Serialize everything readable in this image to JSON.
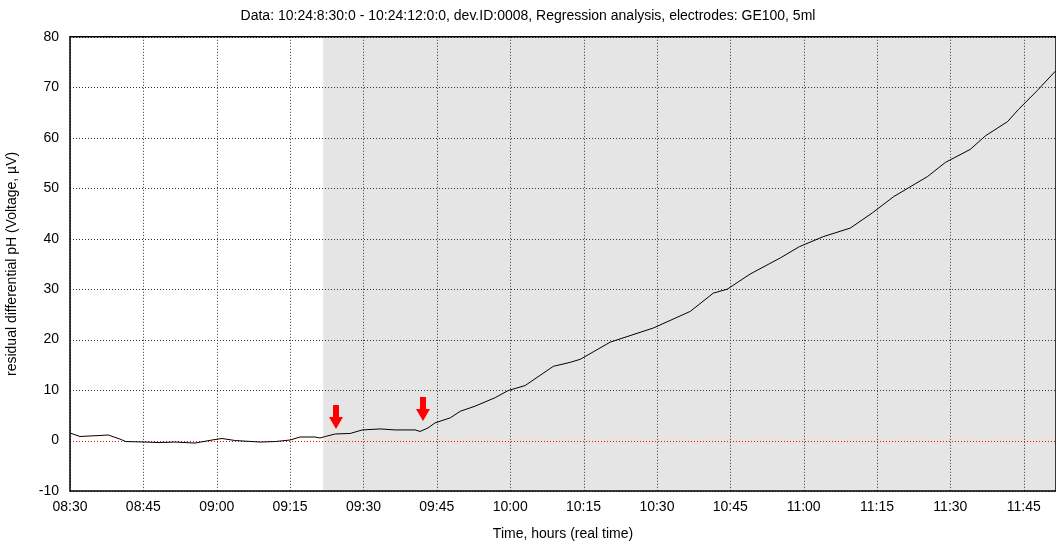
{
  "chart_data": {
    "type": "line",
    "title": "Data: 10:24:8:30:0 - 10:24:12:0:0, dev.ID:0008, Regression analysis, electrodes: GE100, 5ml",
    "xlabel": "Time, hours (real time)",
    "ylabel": "residual differential pH (Voltage, µV)",
    "x": [
      8.5,
      8.534,
      8.602,
      8.63,
      8.67,
      8.69,
      8.756,
      8.807,
      8.858,
      8.926,
      8.994,
      9.018,
      9.063,
      9.148,
      9.2,
      9.25,
      9.284,
      9.335,
      9.352,
      9.37,
      9.404,
      9.455,
      9.496,
      9.557,
      9.608,
      9.676,
      9.693,
      9.72,
      9.744,
      9.796,
      9.83,
      9.88,
      9.949,
      9.993,
      10.051,
      10.147,
      10.205,
      10.239,
      10.341,
      10.488,
      10.614,
      10.692,
      10.74,
      10.818,
      10.921,
      10.985,
      11.067,
      11.159,
      11.234,
      11.306,
      11.422,
      11.483,
      11.568,
      11.62,
      11.695,
      11.732,
      11.797,
      11.858
    ],
    "series": [
      {
        "color": "#000000",
        "values": [
          1.5,
          0.8,
          1.0,
          1.1,
          0.3,
          -0.2,
          -0.3,
          -0.4,
          -0.3,
          -0.5,
          0.2,
          0.4,
          0.0,
          -0.3,
          -0.2,
          0.1,
          0.7,
          0.7,
          0.5,
          0.8,
          1.3,
          1.4,
          2.1,
          2.3,
          2.1,
          2.1,
          1.8,
          2.5,
          3.5,
          4.5,
          5.8,
          6.8,
          8.5,
          9.9,
          10.9,
          14.7,
          15.5,
          16.1,
          19.5,
          22.3,
          25.6,
          29.2,
          30.0,
          33.0,
          36.2,
          38.4,
          40.4,
          42.1,
          45.1,
          48.3,
          52.3,
          55.1,
          57.7,
          60.4,
          63.2,
          65.6,
          69.4,
          73.2
        ]
      }
    ],
    "xlim": [
      8.5,
      11.86
    ],
    "xticks": [
      {
        "value": 8.5,
        "label": "08:30"
      },
      {
        "value": 8.75,
        "label": "08:45"
      },
      {
        "value": 9,
        "label": "09:00"
      },
      {
        "value": 9.25,
        "label": "09:15"
      },
      {
        "value": 9.5,
        "label": "09:30"
      },
      {
        "value": 9.75,
        "label": "09:45"
      },
      {
        "value": 10,
        "label": "10:00"
      },
      {
        "value": 10.25,
        "label": "10:15"
      },
      {
        "value": 10.5,
        "label": "10:30"
      },
      {
        "value": 10.75,
        "label": "10:45"
      },
      {
        "value": 11,
        "label": "11:00"
      },
      {
        "value": 11.25,
        "label": "11:15"
      },
      {
        "value": 11.5,
        "label": "11:30"
      },
      {
        "value": 11.75,
        "label": "11:45"
      }
    ],
    "ylim": [
      -10,
      80
    ],
    "yticks": [
      -10,
      0,
      10,
      20,
      30,
      40,
      50,
      60,
      70,
      80
    ],
    "ref_lines": [
      {
        "axis": "y",
        "value": 0,
        "color": "#ff0000",
        "line_style": "dotted"
      }
    ],
    "bands": [
      {
        "axis": "x",
        "from": 9.363,
        "to": 11.86,
        "color": "#e5e5e5"
      }
    ],
    "grid": true,
    "legend": false,
    "marker": "none",
    "line_style": "solid"
  }
}
